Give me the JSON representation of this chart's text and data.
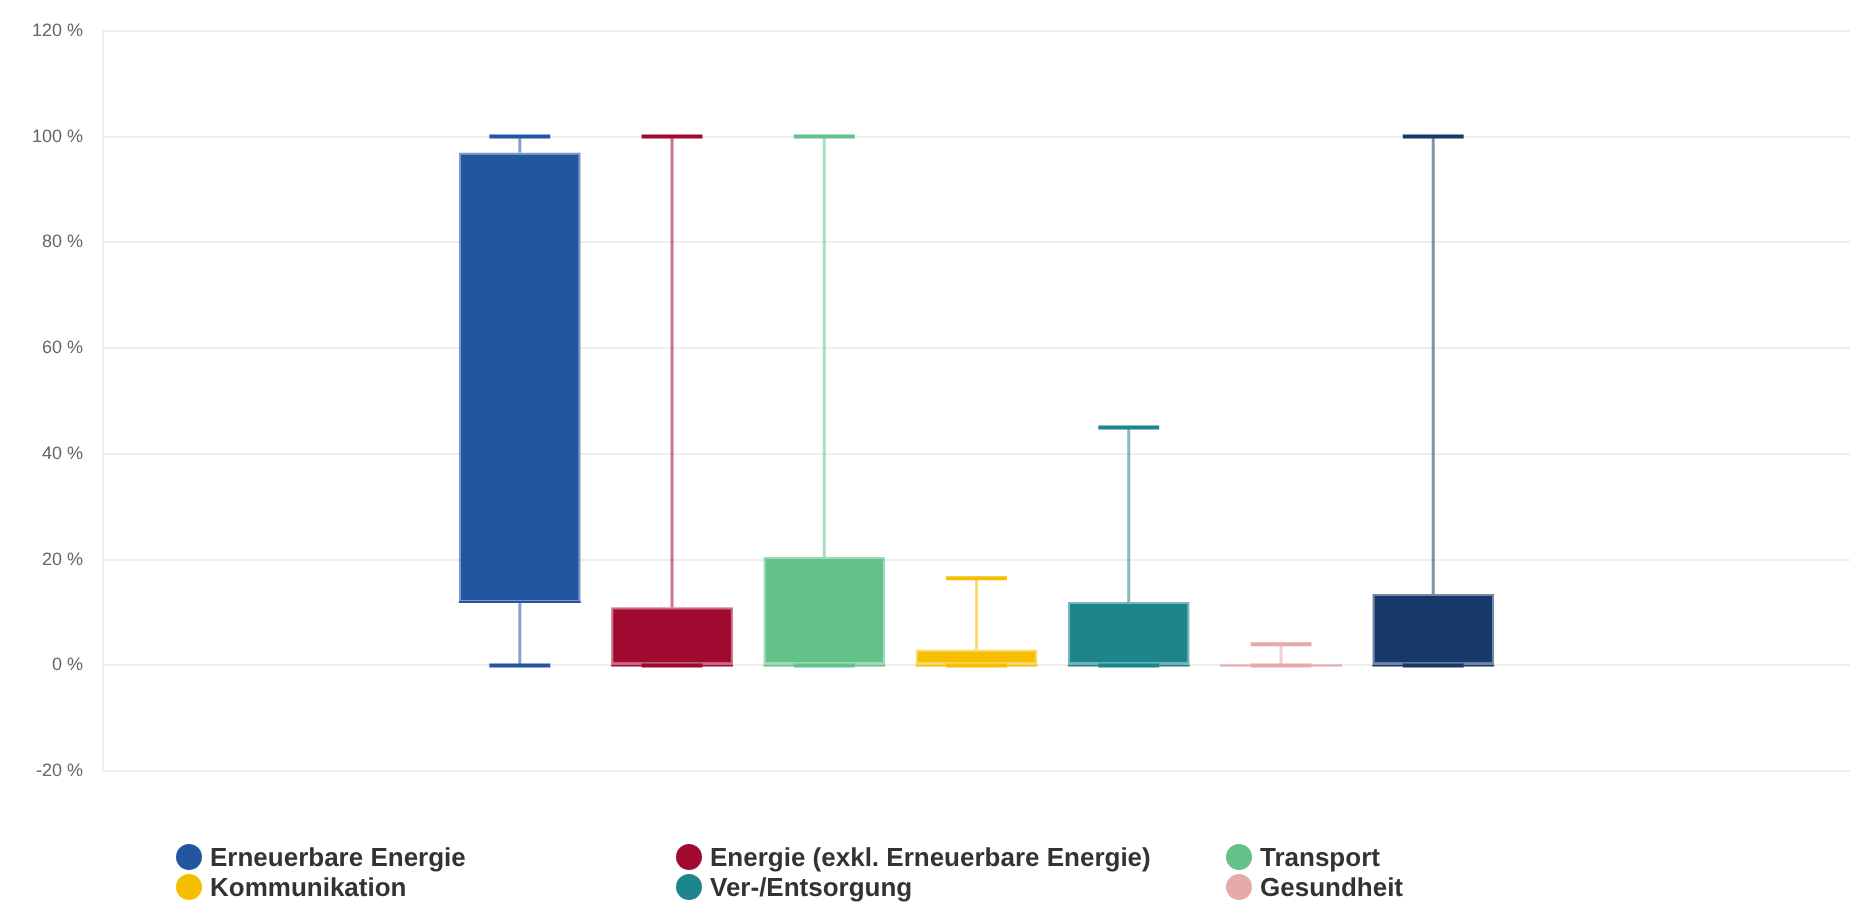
{
  "chart_data": {
    "type": "box",
    "categories": [
      null
    ],
    "series": [
      {
        "name": "Erneuerbare Energie",
        "color": "#2356a1",
        "boxes": [
          {
            "low": 0,
            "q1": 12,
            "median": 12,
            "q3": 97,
            "high": 100
          }
        ]
      },
      {
        "name": "Energie (exkl. Erneuerbare Energie)",
        "color": "#a00a30",
        "boxes": [
          {
            "low": 0,
            "q1": 0,
            "median": 0,
            "q3": 11,
            "high": 100
          }
        ]
      },
      {
        "name": "Transport",
        "color": "#62c28a",
        "boxes": [
          {
            "low": 0,
            "q1": 0,
            "median": 0,
            "q3": 20.5,
            "high": 100
          }
        ]
      },
      {
        "name": "Kommunikation",
        "color": "#f6be00",
        "boxes": [
          {
            "low": 0,
            "q1": 0,
            "median": 0,
            "q3": 3,
            "high": 16.5
          }
        ]
      },
      {
        "name": "Ver-/Entsorgung",
        "color": "#1c868c",
        "boxes": [
          {
            "low": 0,
            "q1": 0,
            "median": 0,
            "q3": 12,
            "high": 45
          }
        ]
      },
      {
        "name": "Gesundheit",
        "color": "#e7a9a9",
        "boxes": [
          {
            "low": 0,
            "q1": 0,
            "median": 0,
            "q3": 0.3,
            "high": 4
          }
        ]
      },
      {
        "color": "#17386b",
        "boxes": [
          {
            "low": 0,
            "q1": 0,
            "median": 0,
            "q3": 13.5,
            "high": 100
          }
        ]
      }
    ],
    "ylim": [
      -20,
      120
    ],
    "yticks": [
      {
        "value": -20,
        "label": "-20 %"
      },
      {
        "value": 0,
        "label": "0 %"
      },
      {
        "value": 20,
        "label": "20 %"
      },
      {
        "value": 40,
        "label": "40 %"
      },
      {
        "value": 60,
        "label": "60 %"
      },
      {
        "value": 80,
        "label": "80 %"
      },
      {
        "value": 100,
        "label": "100 %"
      },
      {
        "value": 120,
        "label": "120 %"
      }
    ],
    "grid": "y",
    "legend": "bottom"
  }
}
